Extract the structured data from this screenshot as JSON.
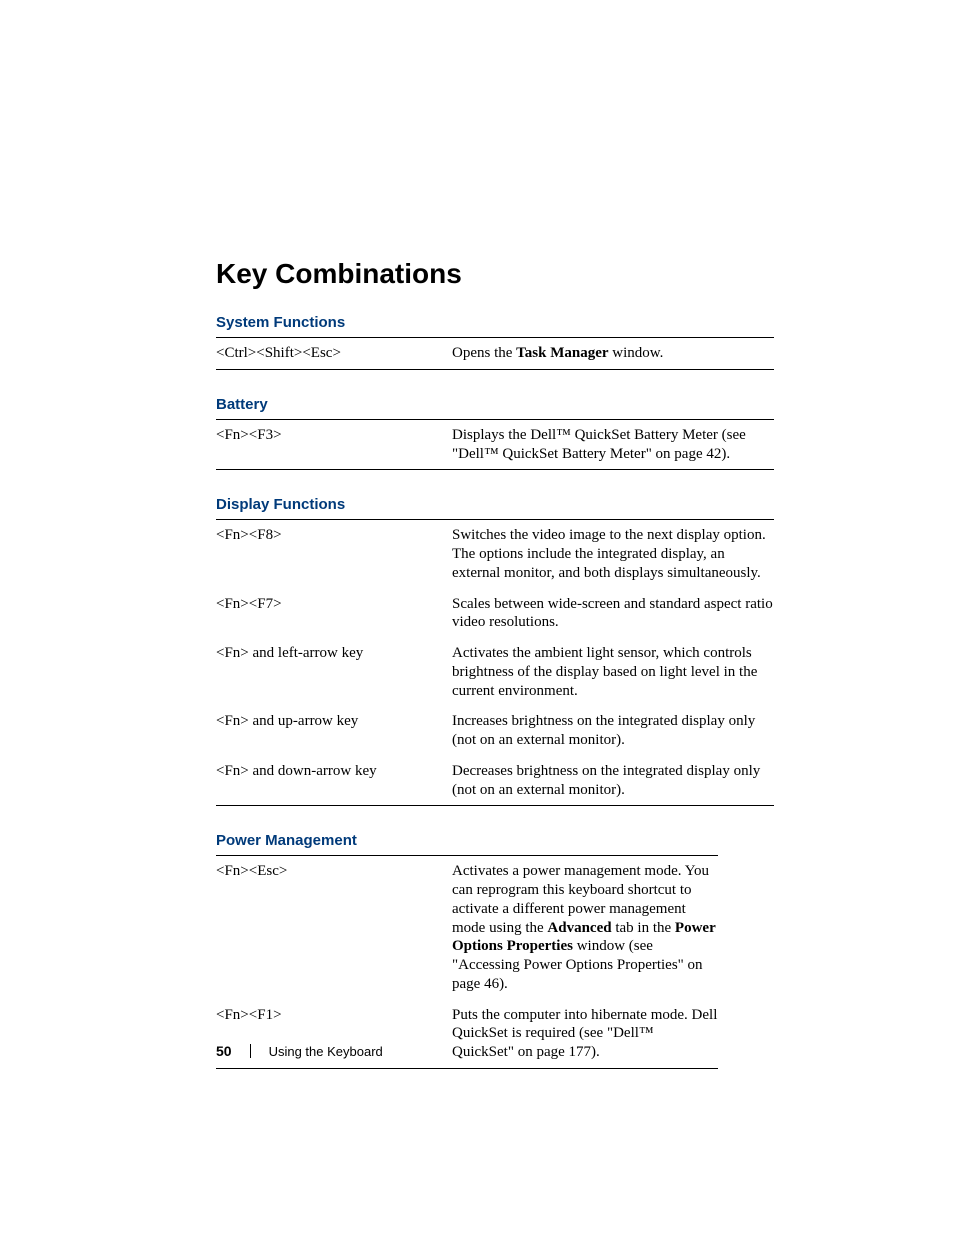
{
  "colors": {
    "heading_blue": "#003a7a",
    "text": "#000000",
    "background": "#ffffff",
    "rule": "#000000"
  },
  "typography": {
    "title_font": "Helvetica Neue, Arial, sans-serif",
    "title_size_pt": 21,
    "section_size_pt": 11,
    "body_font": "Georgia, Times New Roman, serif",
    "body_size_pt": 11
  },
  "title": "Key Combinations",
  "sections": [
    {
      "heading": "System Functions",
      "narrow": false,
      "rows": [
        {
          "key": "<Ctrl><Shift><Esc>",
          "desc_html": "Opens the <b>Task Manager</b> window."
        }
      ]
    },
    {
      "heading": "Battery",
      "narrow": false,
      "rows": [
        {
          "key": "<Fn><F3>",
          "desc_html": "Displays the Dell™ QuickSet Battery Meter (see \"Dell™ QuickSet Battery Meter\" on page 42)."
        }
      ]
    },
    {
      "heading": "Display Functions",
      "narrow": false,
      "rows": [
        {
          "key": "<Fn><F8>",
          "desc_html": "Switches the video image to the next display option. The options include the integrated display, an external monitor, and both displays simultaneously."
        },
        {
          "key": "<Fn><F7>",
          "desc_html": "Scales between wide-screen and standard aspect ratio video resolutions."
        },
        {
          "key": "<Fn> and left-arrow key",
          "desc_html": "Activates the ambient light sensor, which controls brightness of the display based on light level in the current environment."
        },
        {
          "key": "<Fn> and up-arrow key",
          "desc_html": "Increases brightness on the integrated display only (not on an external monitor)."
        },
        {
          "key": "<Fn> and down-arrow key",
          "desc_html": "Decreases brightness on the integrated display only (not on an external monitor)."
        }
      ]
    },
    {
      "heading": "Power Management",
      "narrow": true,
      "rows": [
        {
          "key": "<Fn><Esc>",
          "desc_html": "Activates a power management mode. You can reprogram this keyboard shortcut to activate a different power management mode using the <b>Advanced</b> tab in the <b>Power Options Properties</b> window (see \"Accessing Power Options Properties\" on page 46)."
        },
        {
          "key": "<Fn><F1>",
          "desc_html": "Puts the computer into hibernate mode. Dell QuickSet is required (see \"Dell™ QuickSet\" on page 177)."
        }
      ]
    }
  ],
  "footer": {
    "page_number": "50",
    "chapter": "Using the Keyboard"
  }
}
